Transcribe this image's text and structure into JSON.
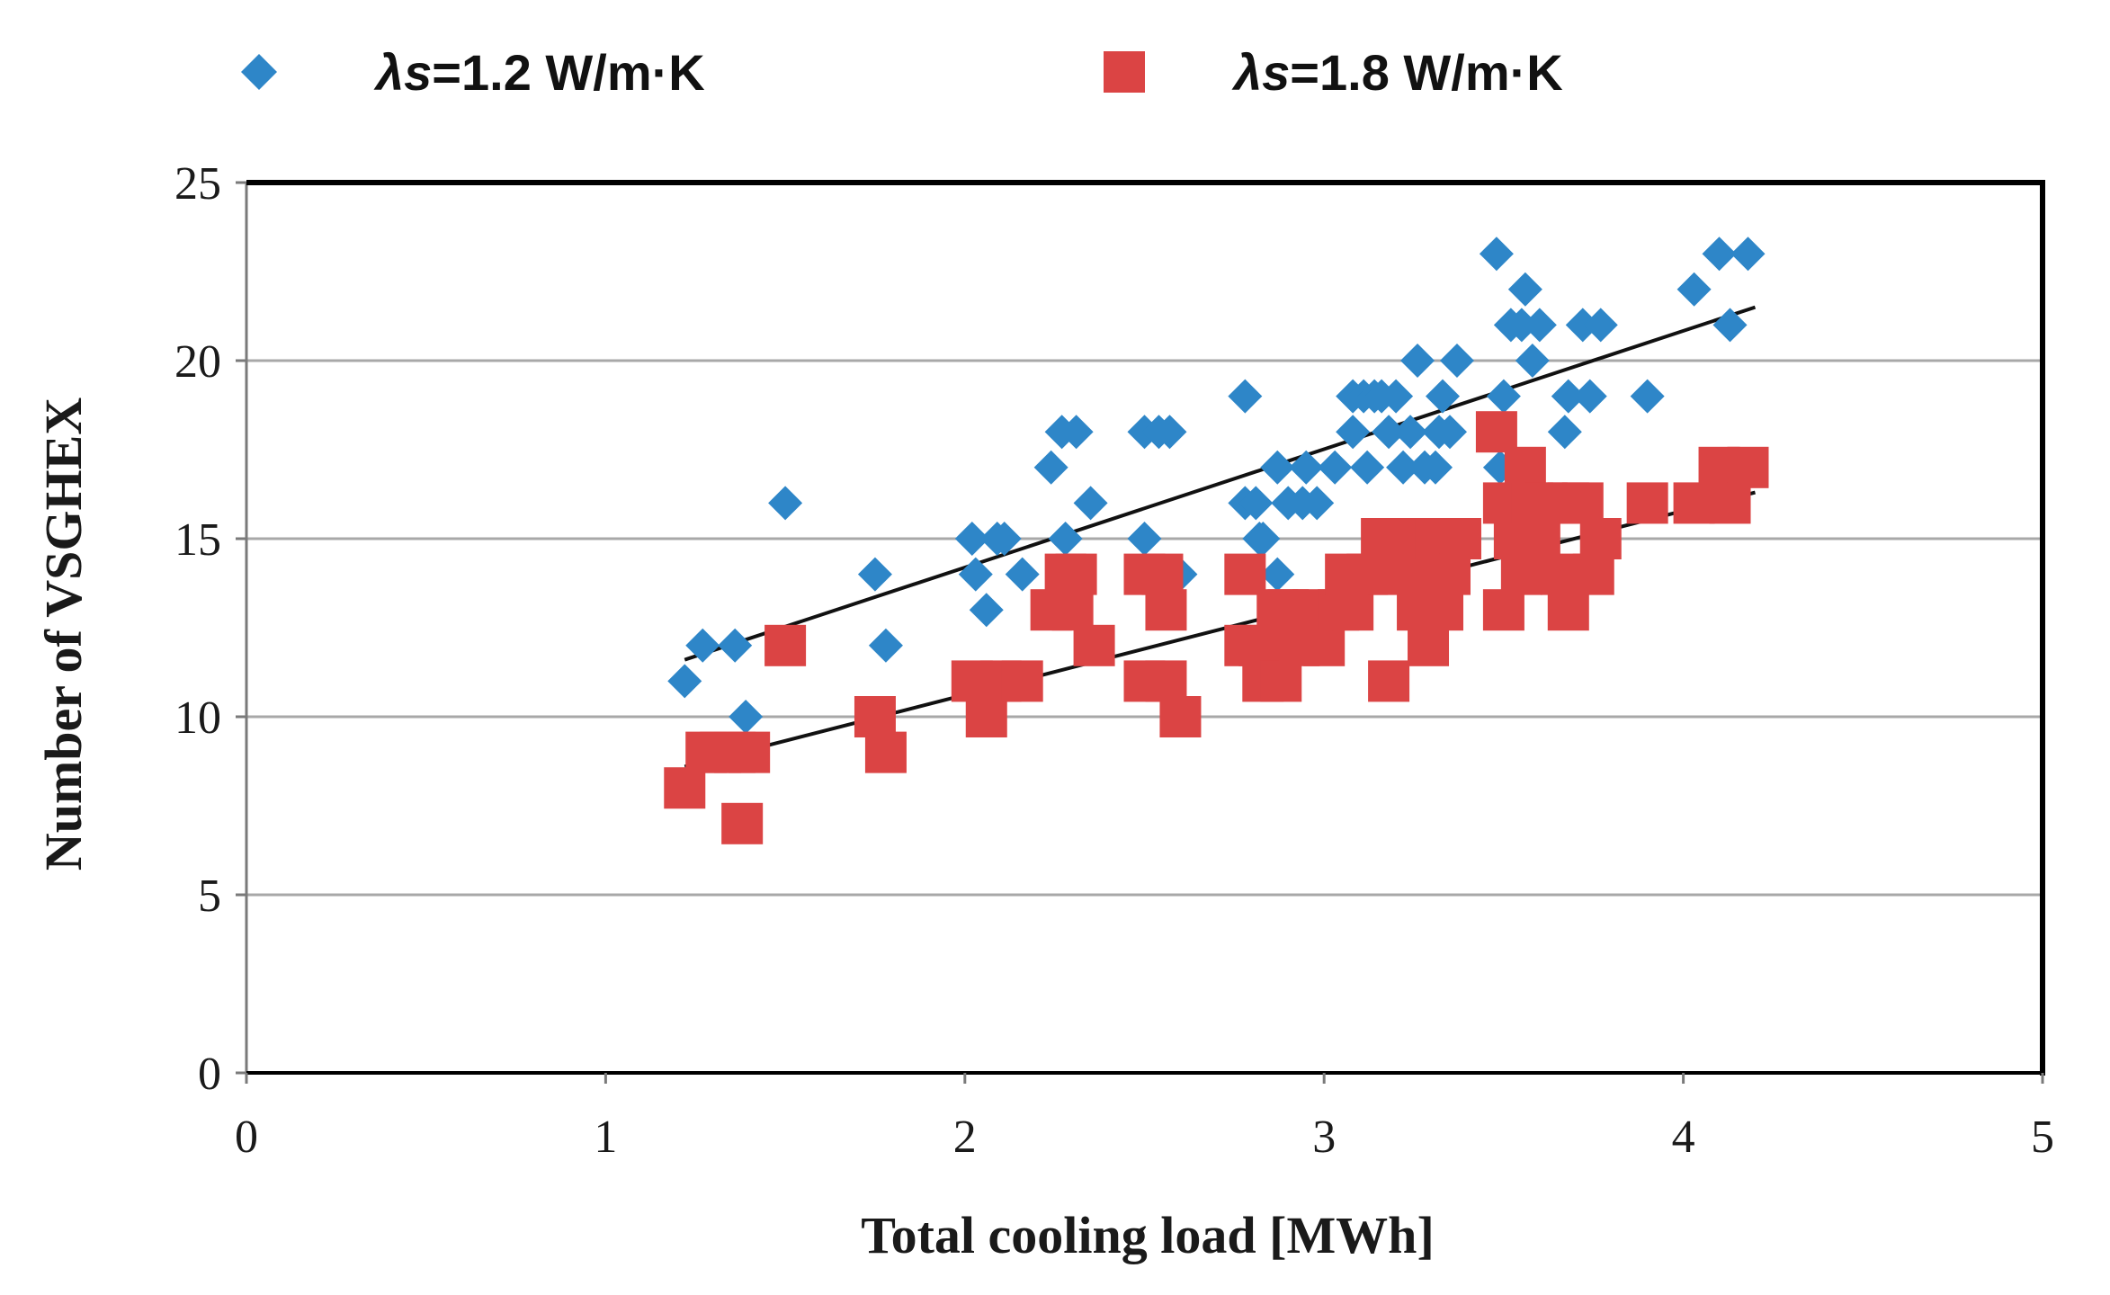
{
  "chart_data": {
    "type": "scatter",
    "title": "",
    "xlabel": "Total cooling load [MWh]",
    "ylabel": "Number of VSGHEX",
    "xlim": [
      0,
      5
    ],
    "ylim": [
      0,
      25
    ],
    "x_ticks": [
      0,
      1,
      2,
      3,
      4,
      5
    ],
    "y_ticks": [
      0,
      5,
      10,
      15,
      20,
      25
    ],
    "grid": "horizontal",
    "legend_position": "top",
    "colors": {
      "series1": "#2E86C8",
      "series2": "#DB4444",
      "trend": "#111111",
      "grid": "#a8a8a8",
      "frame": "#000000"
    },
    "series": [
      {
        "name": "λs=1.2 W/m·K",
        "legend": {
          "symbol": "λ",
          "subscript": "s",
          "rest": "=1.2 W/m·K"
        },
        "marker": "diamond",
        "color": "#2E86C8",
        "trendline": [
          [
            1.22,
            11.6
          ],
          [
            4.2,
            21.5
          ]
        ],
        "points": [
          [
            1.22,
            11
          ],
          [
            1.27,
            12
          ],
          [
            1.36,
            12
          ],
          [
            1.39,
            10
          ],
          [
            1.5,
            16
          ],
          [
            1.75,
            14
          ],
          [
            1.78,
            12
          ],
          [
            2.02,
            15
          ],
          [
            2.03,
            14
          ],
          [
            2.06,
            13
          ],
          [
            2.09,
            15
          ],
          [
            2.11,
            15
          ],
          [
            2.16,
            14
          ],
          [
            2.24,
            17
          ],
          [
            2.27,
            18
          ],
          [
            2.31,
            18
          ],
          [
            2.28,
            15
          ],
          [
            2.35,
            16
          ],
          [
            2.5,
            18
          ],
          [
            2.5,
            15
          ],
          [
            2.54,
            18
          ],
          [
            2.57,
            18
          ],
          [
            2.6,
            14
          ],
          [
            2.78,
            19
          ],
          [
            2.78,
            16
          ],
          [
            2.81,
            16
          ],
          [
            2.82,
            15
          ],
          [
            2.83,
            15
          ],
          [
            2.87,
            17
          ],
          [
            2.87,
            14
          ],
          [
            2.9,
            16
          ],
          [
            2.94,
            16
          ],
          [
            2.95,
            17
          ],
          [
            2.98,
            16
          ],
          [
            3.03,
            17
          ],
          [
            3.08,
            18
          ],
          [
            3.08,
            19
          ],
          [
            3.11,
            19
          ],
          [
            3.12,
            17
          ],
          [
            3.14,
            19
          ],
          [
            3.16,
            19
          ],
          [
            3.18,
            18
          ],
          [
            3.2,
            19
          ],
          [
            3.22,
            17
          ],
          [
            3.24,
            18
          ],
          [
            3.26,
            20
          ],
          [
            3.28,
            17
          ],
          [
            3.31,
            17
          ],
          [
            3.32,
            18
          ],
          [
            3.33,
            19
          ],
          [
            3.35,
            18
          ],
          [
            3.37,
            20
          ],
          [
            3.48,
            23
          ],
          [
            3.49,
            17
          ],
          [
            3.5,
            19
          ],
          [
            3.52,
            21
          ],
          [
            3.55,
            21
          ],
          [
            3.56,
            22
          ],
          [
            3.58,
            20
          ],
          [
            3.6,
            21
          ],
          [
            3.67,
            18
          ],
          [
            3.68,
            19
          ],
          [
            3.72,
            21
          ],
          [
            3.74,
            19
          ],
          [
            3.77,
            21
          ],
          [
            3.9,
            19
          ],
          [
            4.03,
            22
          ],
          [
            4.1,
            23
          ],
          [
            4.13,
            21
          ],
          [
            4.18,
            23
          ]
        ]
      },
      {
        "name": "λs=1.8 W/m·K",
        "legend": {
          "symbol": "λ",
          "subscript": "s",
          "rest": "=1.8 W/m·K"
        },
        "marker": "square",
        "color": "#DB4444",
        "trendline": [
          [
            1.22,
            8.6
          ],
          [
            4.2,
            16.3
          ]
        ],
        "points": [
          [
            1.22,
            8
          ],
          [
            1.28,
            9
          ],
          [
            1.32,
            9
          ],
          [
            1.36,
            9
          ],
          [
            1.4,
            9
          ],
          [
            1.38,
            7
          ],
          [
            1.5,
            12
          ],
          [
            1.75,
            10
          ],
          [
            1.78,
            9
          ],
          [
            2.02,
            11
          ],
          [
            2.06,
            10
          ],
          [
            2.1,
            11
          ],
          [
            2.16,
            11
          ],
          [
            2.24,
            13
          ],
          [
            2.28,
            14
          ],
          [
            2.3,
            13
          ],
          [
            2.31,
            14
          ],
          [
            2.36,
            12
          ],
          [
            2.5,
            14
          ],
          [
            2.5,
            11
          ],
          [
            2.55,
            14
          ],
          [
            2.56,
            13
          ],
          [
            2.56,
            11
          ],
          [
            2.6,
            10
          ],
          [
            2.78,
            14
          ],
          [
            2.78,
            12
          ],
          [
            2.82,
            12
          ],
          [
            2.83,
            11
          ],
          [
            2.87,
            13
          ],
          [
            2.88,
            11
          ],
          [
            2.9,
            13
          ],
          [
            2.93,
            12
          ],
          [
            2.97,
            13
          ],
          [
            3.0,
            12
          ],
          [
            3.04,
            13
          ],
          [
            3.06,
            14
          ],
          [
            3.08,
            13
          ],
          [
            3.12,
            14
          ],
          [
            3.16,
            15
          ],
          [
            3.18,
            14
          ],
          [
            3.2,
            15
          ],
          [
            3.18,
            11
          ],
          [
            3.24,
            15
          ],
          [
            3.26,
            13
          ],
          [
            3.28,
            14
          ],
          [
            3.29,
            12
          ],
          [
            3.31,
            15
          ],
          [
            3.33,
            13
          ],
          [
            3.35,
            14
          ],
          [
            3.38,
            15
          ],
          [
            3.48,
            18
          ],
          [
            3.5,
            16
          ],
          [
            3.5,
            13
          ],
          [
            3.53,
            15
          ],
          [
            3.55,
            14
          ],
          [
            3.56,
            17
          ],
          [
            3.58,
            16
          ],
          [
            3.6,
            15
          ],
          [
            3.62,
            16
          ],
          [
            3.66,
            14
          ],
          [
            3.68,
            16
          ],
          [
            3.68,
            13
          ],
          [
            3.72,
            16
          ],
          [
            3.75,
            14
          ],
          [
            3.77,
            15
          ],
          [
            3.9,
            16
          ],
          [
            4.03,
            16
          ],
          [
            4.1,
            17
          ],
          [
            4.13,
            16
          ],
          [
            4.18,
            17
          ]
        ]
      }
    ]
  }
}
